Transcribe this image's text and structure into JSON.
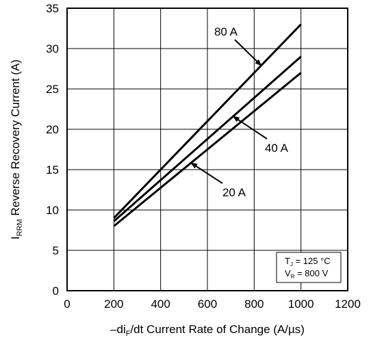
{
  "chart_data": {
    "type": "line",
    "xlabel": {
      "prefix": "–di",
      "sub": "F",
      "suffix": "/dt Current Rate of Change (A/µs)"
    },
    "ylabel": {
      "prefix": "I",
      "sub": "RRM",
      "suffix": " Reverse Recovery Current (A)"
    },
    "xlim": [
      0,
      1200
    ],
    "ylim": [
      0,
      35
    ],
    "xticks": [
      "0",
      "200",
      "400",
      "600",
      "800",
      "1000",
      "1200"
    ],
    "yticks": [
      "0",
      "5",
      "10",
      "15",
      "20",
      "25",
      "30",
      "35"
    ],
    "grid": true,
    "series": [
      {
        "name": "80 A",
        "x": [
          200,
          1000
        ],
        "y": [
          9,
          33
        ]
      },
      {
        "name": "40 A",
        "x": [
          200,
          1000
        ],
        "y": [
          8.6,
          29
        ]
      },
      {
        "name": "20 A",
        "x": [
          200,
          1000
        ],
        "y": [
          8,
          27
        ]
      }
    ],
    "annotations": [
      {
        "text": "80 A",
        "series": 0,
        "point_x": 830
      },
      {
        "text": "40 A",
        "series": 1,
        "point_x": 710
      },
      {
        "text": "20 A",
        "series": 2,
        "point_x": 530
      }
    ],
    "conditions": [
      {
        "sym": "T",
        "sub": "J",
        "rest": " = 125 °C"
      },
      {
        "sym": "V",
        "sub": "R",
        "rest": " = 800 V"
      }
    ]
  }
}
